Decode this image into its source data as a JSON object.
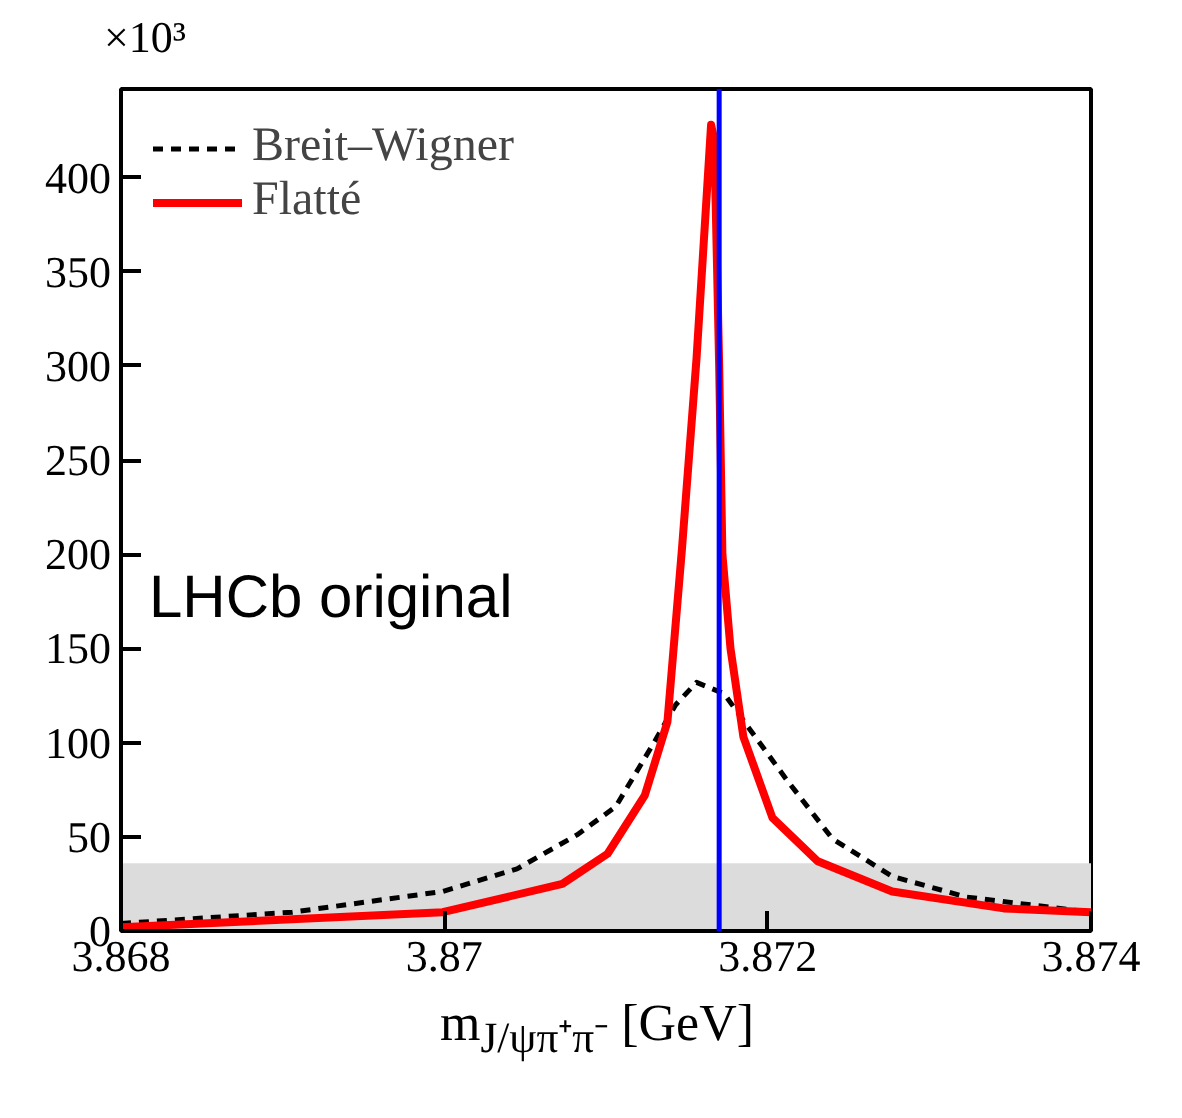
{
  "chart_data": {
    "type": "line",
    "xlabel": "m$_{J/ψπ⁺π⁻}$ [GeV]",
    "annotations": [
      "×10³",
      "LHCb original"
    ],
    "series": [
      {
        "name": "Breit–Wigner",
        "color": "#000000",
        "line_style": "dashed",
        "x": [
          3.868,
          3.86906,
          3.86999,
          3.87045,
          3.87082,
          3.87106,
          3.87129,
          3.87143,
          3.87156,
          3.87173,
          3.87189,
          3.87212,
          3.8724,
          3.87277,
          3.87323,
          3.874
        ],
        "values": [
          4,
          10,
          21,
          33,
          51,
          66,
          99,
          120,
          132,
          126,
          107,
          80,
          49,
          29,
          18,
          10
        ]
      },
      {
        "name": "Flatté",
        "color": "#ff0000",
        "line_style": "solid",
        "x": [
          3.868,
          3.86999,
          3.87073,
          3.87101,
          3.87124,
          3.87138,
          3.87147,
          3.87156,
          3.87165,
          3.87167,
          3.8717,
          3.87172,
          3.87177,
          3.87185,
          3.87203,
          3.87231,
          3.87277,
          3.87346,
          3.874
        ],
        "values": [
          2,
          10,
          25,
          41,
          72,
          111,
          203,
          304,
          428,
          420,
          300,
          200,
          150,
          103,
          60,
          37,
          21,
          12,
          10
        ]
      }
    ],
    "xlim": [
      3.868,
      3.874
    ],
    "xticks": [
      3.868,
      3.87,
      3.872,
      3.874
    ],
    "ylim": [
      0,
      447
    ],
    "yticks": [
      0,
      50,
      100,
      150,
      200,
      250,
      300,
      350,
      400
    ],
    "ref_lines": [
      {
        "axis": "x",
        "value": 3.8717,
        "label": null,
        "color": "#0000ff",
        "line_style": "solid"
      }
    ],
    "bands": [
      {
        "axis": "y",
        "from": 0,
        "to": 36,
        "label": null,
        "color": "#dcdcdc"
      }
    ],
    "legend": "top left",
    "grid": false,
    "marker": "none"
  }
}
